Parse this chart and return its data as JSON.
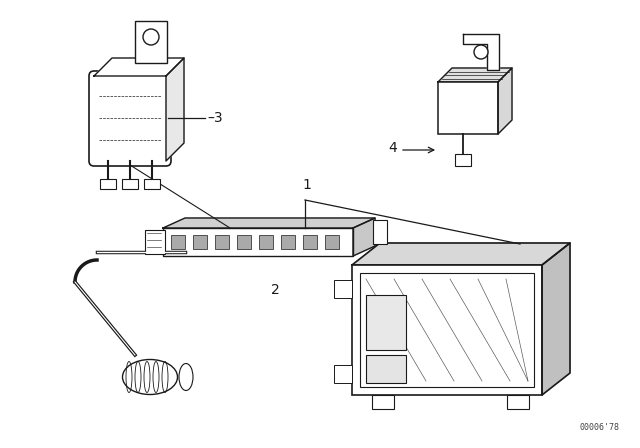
{
  "background_color": "#ffffff",
  "line_color": "#1a1a1a",
  "figure_width": 6.4,
  "figure_height": 4.48,
  "dpi": 100,
  "watermark": "00006'78",
  "label_fontsize": 10
}
